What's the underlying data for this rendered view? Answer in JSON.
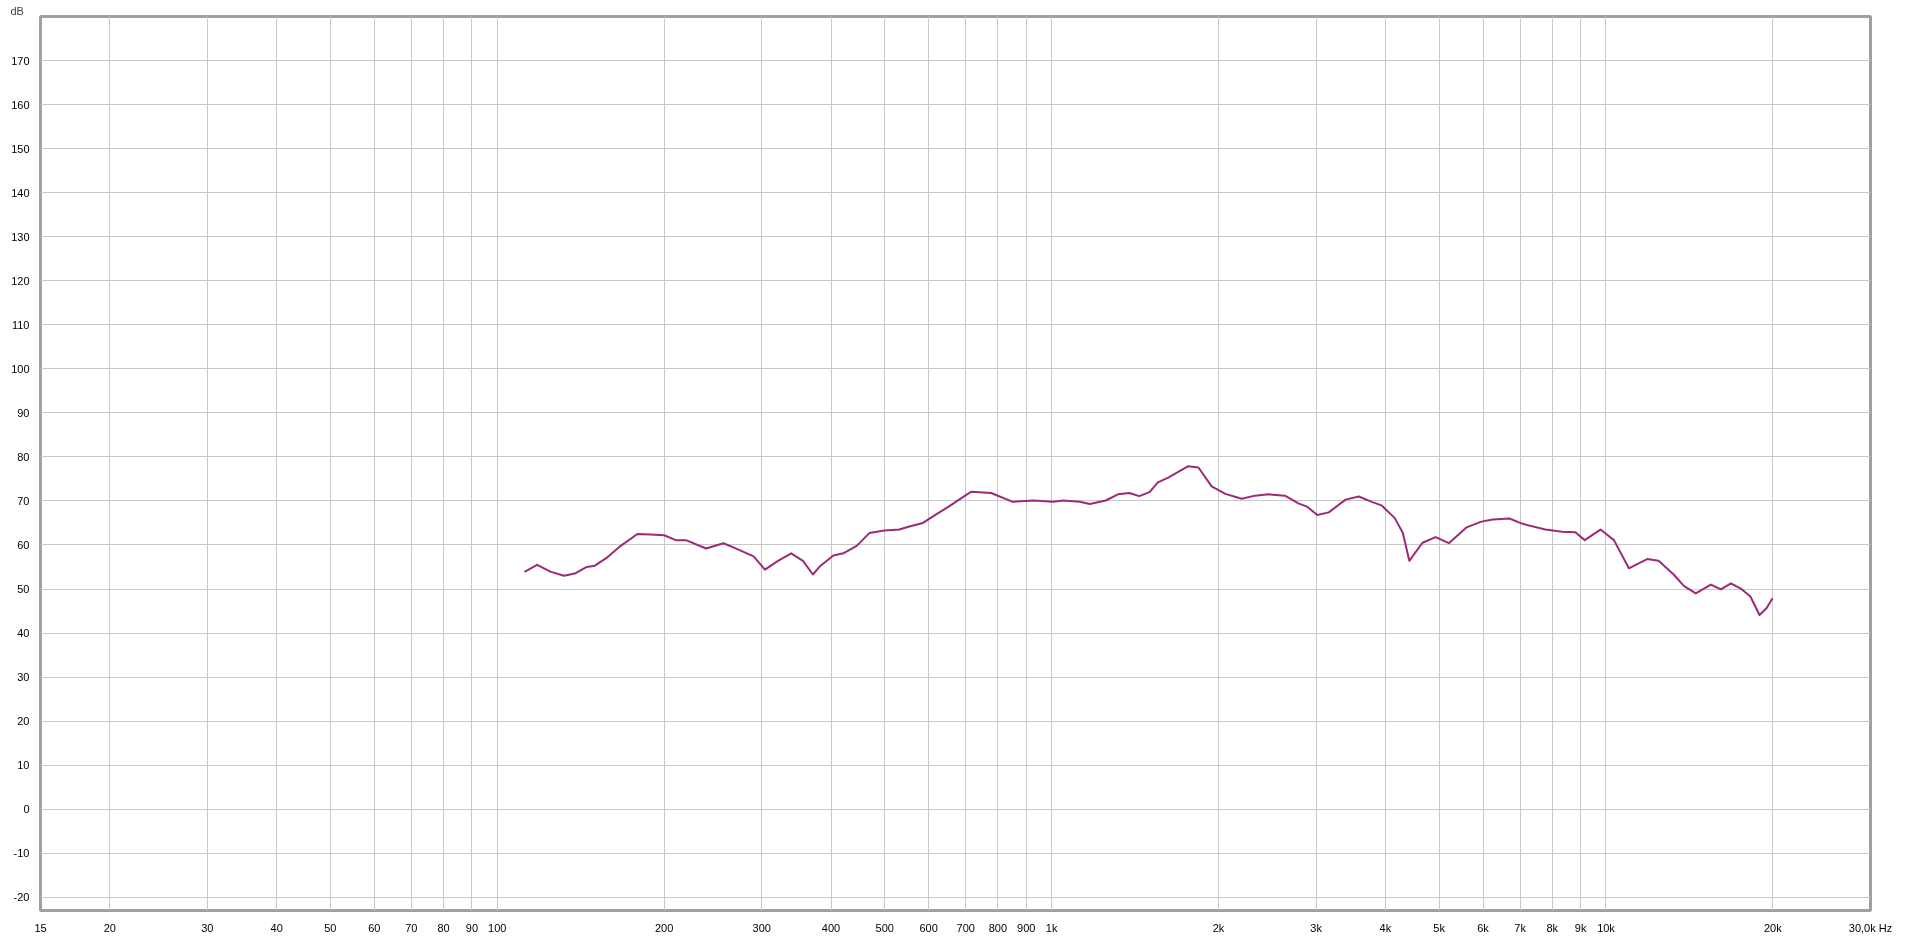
{
  "chart_data": {
    "type": "line",
    "ylabel": "dB",
    "log": "x",
    "grid": true,
    "marker": "none",
    "line_style": "solid",
    "xlim": [
      15,
      30000
    ],
    "ylim": [
      -23,
      180
    ],
    "xticks": [
      15,
      20,
      30,
      40,
      50,
      60,
      70,
      80,
      90,
      100,
      200,
      300,
      400,
      500,
      600,
      700,
      800,
      900,
      {
        "value": 1000,
        "label": "1k"
      },
      {
        "value": 2000,
        "label": "2k"
      },
      {
        "value": 3000,
        "label": "3k"
      },
      {
        "value": 4000,
        "label": "4k"
      },
      {
        "value": 5000,
        "label": "5k"
      },
      {
        "value": 6000,
        "label": "6k"
      },
      {
        "value": 7000,
        "label": "7k"
      },
      {
        "value": 8000,
        "label": "8k"
      },
      {
        "value": 9000,
        "label": "9k"
      },
      {
        "value": 10000,
        "label": "10k"
      },
      {
        "value": 20000,
        "label": "20k"
      },
      {
        "value": 30000,
        "label": "30,0k Hz"
      }
    ],
    "yticks": [
      -20,
      -10,
      0,
      10,
      20,
      30,
      40,
      50,
      60,
      70,
      80,
      90,
      100,
      110,
      120,
      130,
      140,
      150,
      160,
      170
    ],
    "series": [
      {
        "color": "#9b2a78",
        "x": [
          112,
          118,
          125,
          132,
          138,
          145,
          150,
          158,
          167,
          179,
          189,
          200,
          210,
          219,
          238,
          256,
          273,
          290,
          304,
          321,
          339,
          356,
          371,
          383,
          404,
          421,
          445,
          469,
          499,
          531,
          554,
          586,
          620,
          652,
          706,
          717,
          778,
          851,
          929,
          1006,
          1050,
          1124,
          1172,
          1252,
          1317,
          1381,
          1439,
          1502,
          1555,
          1623,
          1764,
          1840,
          1944,
          2058,
          2202,
          2328,
          2462,
          2636,
          2793,
          2890,
          3014,
          3162,
          3390,
          3580,
          3781,
          3935,
          4160,
          4301,
          4418,
          4666,
          4927,
          5207,
          5606,
          5958,
          6251,
          6694,
          7074,
          7773,
          8329,
          8806,
          9154,
          9773,
          10335,
          10998,
          11863,
          12442,
          13245,
          13816,
          14518,
          15460,
          16114,
          16801,
          17500,
          18218,
          18920,
          19492,
          19973
        ],
        "values": [
          53.9,
          55.5,
          53.9,
          53.0,
          53.5,
          55.0,
          55.3,
          57.2,
          59.8,
          62.5,
          62.4,
          62.2,
          61.1,
          61.1,
          59.2,
          60.4,
          58.9,
          57.4,
          54.4,
          56.4,
          58.1,
          56.4,
          53.3,
          55.3,
          57.6,
          58.1,
          59.8,
          62.7,
          63.3,
          63.5,
          64.2,
          65.0,
          67.0,
          68.7,
          71.6,
          72.1,
          71.8,
          69.8,
          70.1,
          69.8,
          70.1,
          69.8,
          69.3,
          70.1,
          71.5,
          71.8,
          71.1,
          72.0,
          74.2,
          75.3,
          77.9,
          77.6,
          73.3,
          71.6,
          70.5,
          71.2,
          71.5,
          71.2,
          69.4,
          68.7,
          66.8,
          67.4,
          70.3,
          71.0,
          69.8,
          69.0,
          66.1,
          62.7,
          56.4,
          60.5,
          61.8,
          60.4,
          64.0,
          65.3,
          65.8,
          66.0,
          64.8,
          63.5,
          63.0,
          62.9,
          61.1,
          63.5,
          61.1,
          54.7,
          56.8,
          56.4,
          53.3,
          50.7,
          49.0,
          51.0,
          49.9,
          51.3,
          50.1,
          48.3,
          44.1,
          45.7,
          47.9
        ]
      }
    ]
  }
}
